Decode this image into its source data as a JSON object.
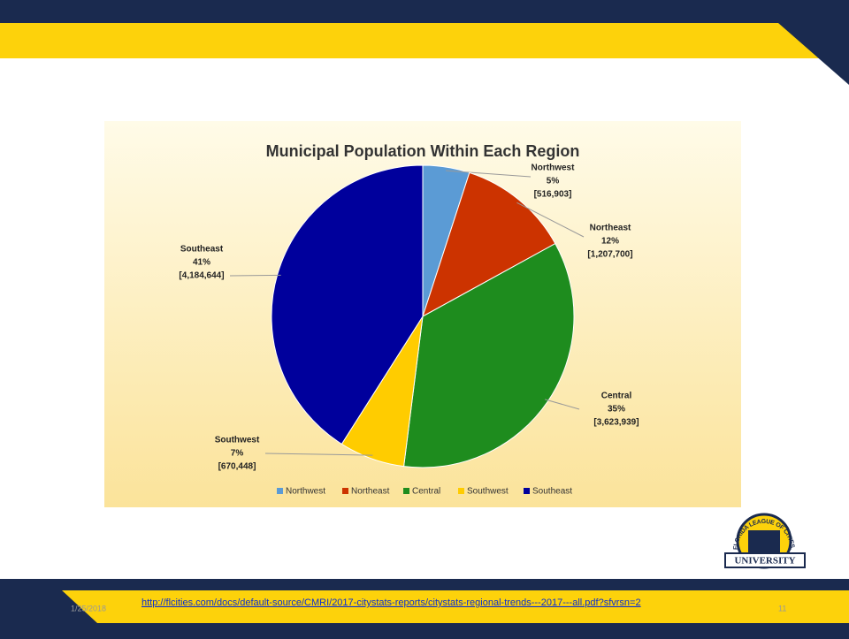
{
  "chart_data": {
    "type": "pie",
    "title": "Municipal Population Within Each Region",
    "categories": [
      "Northwest",
      "Northeast",
      "Central",
      "Southwest",
      "Southeast"
    ],
    "values": [
      5,
      12,
      35,
      7,
      41
    ],
    "value_labels": [
      "5%",
      "12%",
      "35%",
      "7%",
      "41%"
    ],
    "population_labels": [
      "[516,903]",
      "[1,207,700]",
      "[3,623,939]",
      "[670,448]",
      "[4,184,644]"
    ],
    "colors": [
      "#5b9bd5",
      "#cc3300",
      "#1e8c1e",
      "#ffcc00",
      "#00009c"
    ],
    "legend": "bottom"
  },
  "footer": {
    "date": "1/25/2018",
    "link": "http://flcities.com/docs/default-source/CMRI/2017-citystats-reports/citystats-regional-trends---2017---all.pdf?sfvrsn=2",
    "page": "11"
  },
  "logo": {
    "arc_text": "FLORIDA LEAGUE OF CITIES, INC",
    "banner": "UNIVERSITY"
  }
}
